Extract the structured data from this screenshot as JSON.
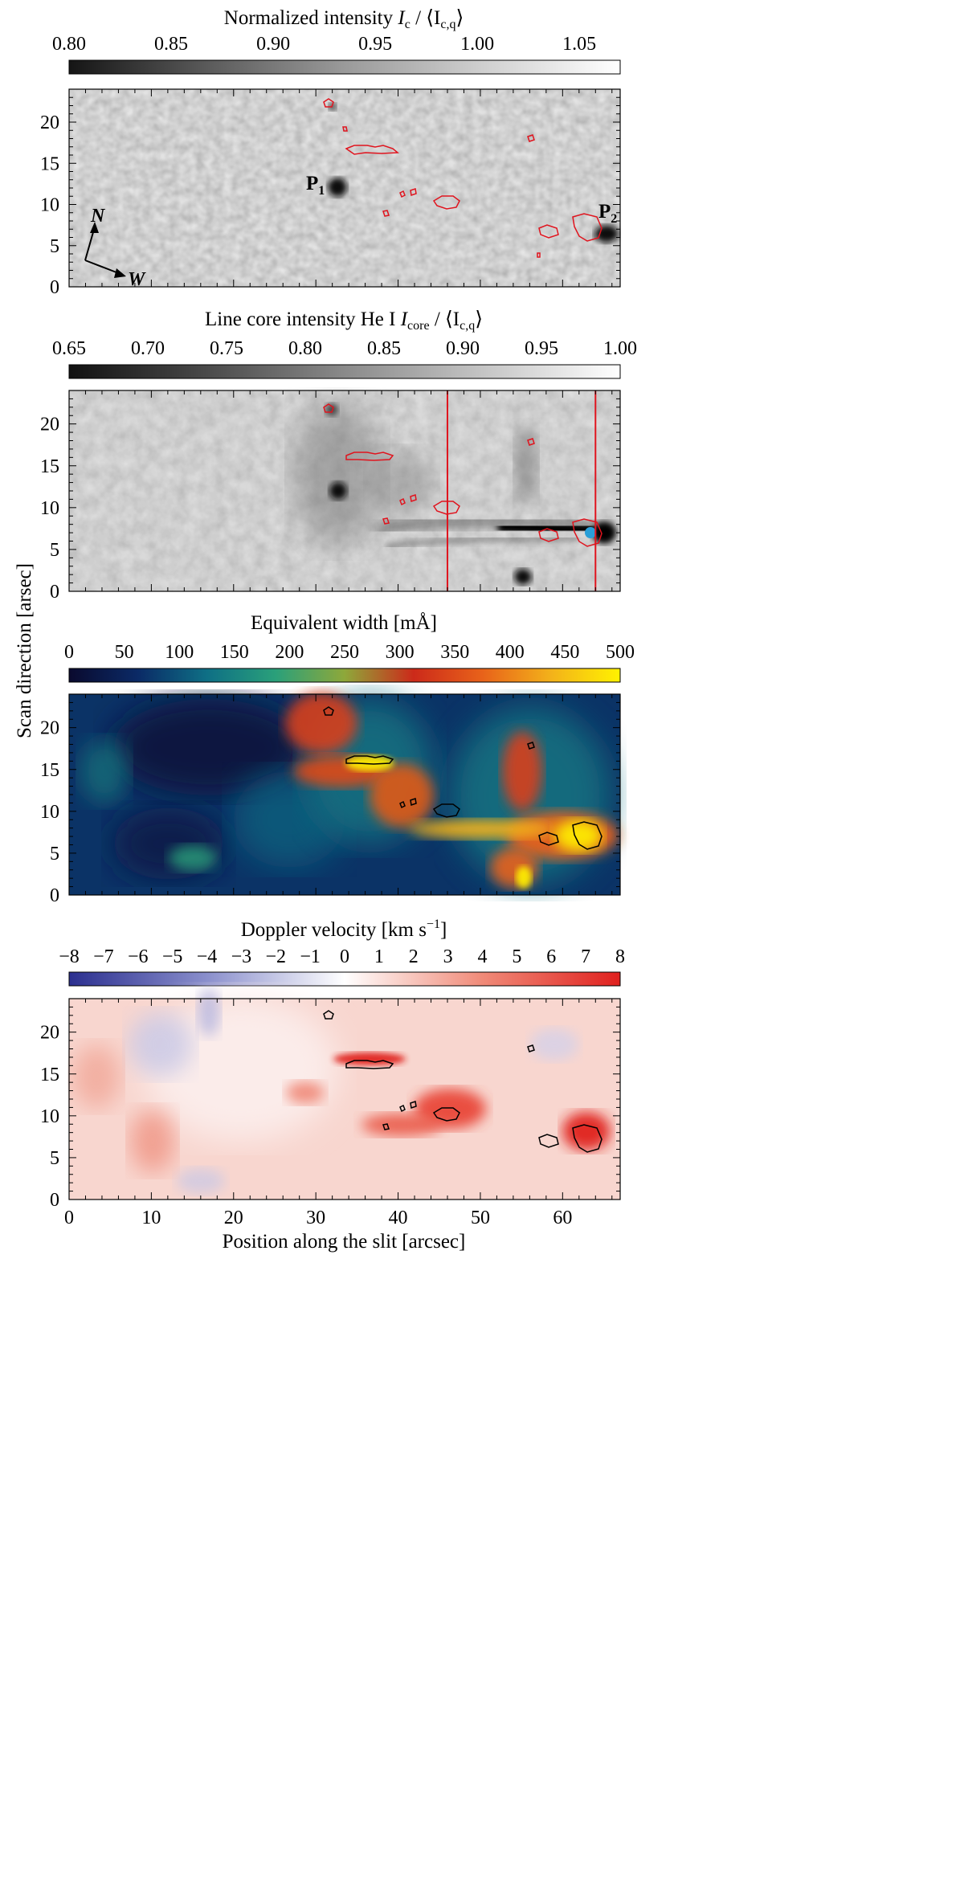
{
  "figure": {
    "ylabel": "Scan direction   [arsec]",
    "xlabel": "Position along the slit   [arcsec]",
    "x_ticks": [
      "0",
      "10",
      "20",
      "30",
      "40",
      "50",
      "60"
    ],
    "y_ticks": [
      "0",
      "5",
      "10",
      "15",
      "20"
    ],
    "xlim": [
      0,
      67
    ],
    "ylim": [
      0,
      24
    ]
  },
  "panels": [
    {
      "id": "continuum",
      "colorbar_title": "Normalized intensity I_c / ⟨I_c,q⟩",
      "colorbar_title_main": "Normalized intensity ",
      "colorbar_title_var": "I",
      "colorbar_title_sub": "c",
      "colorbar_title_rest": " / ⟨I",
      "colorbar_title_sub2": "c,q",
      "colorbar_title_end": "⟩",
      "colorbar_ticks": [
        "0.80",
        "0.85",
        "0.90",
        "0.95",
        "1.00",
        "1.05"
      ],
      "colorbar_range": [
        0.8,
        1.07
      ],
      "colormap": [
        "#151515",
        "#5a5a5a",
        "#9a9a9a",
        "#cfcfcf",
        "#ffffff"
      ],
      "labels": {
        "p1": "P",
        "p1_sub": "1",
        "p2": "P",
        "p2_sub": "2",
        "north": "N",
        "west": "W"
      }
    },
    {
      "id": "he_core",
      "colorbar_title": "Line core intensity He I   I_core / ⟨I_c,q⟩",
      "colorbar_title_main": "Line core intensity He I   ",
      "colorbar_title_var": "I",
      "colorbar_title_sub": "core",
      "colorbar_title_rest": " / ⟨I",
      "colorbar_title_sub2": "c,q",
      "colorbar_title_end": "⟩",
      "colorbar_ticks": [
        "0.65",
        "0.70",
        "0.75",
        "0.80",
        "0.85",
        "0.90",
        "0.95",
        "1.00"
      ],
      "colorbar_range": [
        0.65,
        1.0
      ],
      "colormap": [
        "#111111",
        "#4a4a4a",
        "#8a8a8a",
        "#c4c4c4",
        "#ffffff"
      ],
      "slit_positions_arcsec": [
        46,
        64
      ]
    },
    {
      "id": "equivalent_width",
      "colorbar_title": "Equivalent width   [mÅ]",
      "colorbar_ticks": [
        "0",
        "50",
        "100",
        "150",
        "200",
        "250",
        "300",
        "350",
        "400",
        "450",
        "500"
      ],
      "colorbar_range": [
        0,
        500
      ],
      "colormap": [
        "#0a0a2e",
        "#0b2a66",
        "#0e6f85",
        "#2aa07a",
        "#8ea83a",
        "#cc2a1a",
        "#e8621a",
        "#f3b21a",
        "#fff200"
      ]
    },
    {
      "id": "doppler",
      "colorbar_title": "Doppler velocity   [km s^-1]",
      "colorbar_title_main": "Doppler velocity   [km s",
      "colorbar_title_sup": "−1",
      "colorbar_title_end": "]",
      "colorbar_ticks": [
        "−8",
        "−7",
        "−6",
        "−5",
        "−4",
        "−3",
        "−2",
        "−1",
        "0",
        "1",
        "2",
        "3",
        "4",
        "5",
        "6",
        "7",
        "8"
      ],
      "colorbar_range": [
        -8,
        8
      ],
      "colormap": [
        "#2b2f8f",
        "#8a8fcc",
        "#ffffff",
        "#f08a78",
        "#e0201e"
      ]
    }
  ],
  "colors": {
    "contour_red": "#e0141e",
    "contour_black": "#000000",
    "slit_line": "#e0141e",
    "marker_blue": "#2a9fd8"
  }
}
